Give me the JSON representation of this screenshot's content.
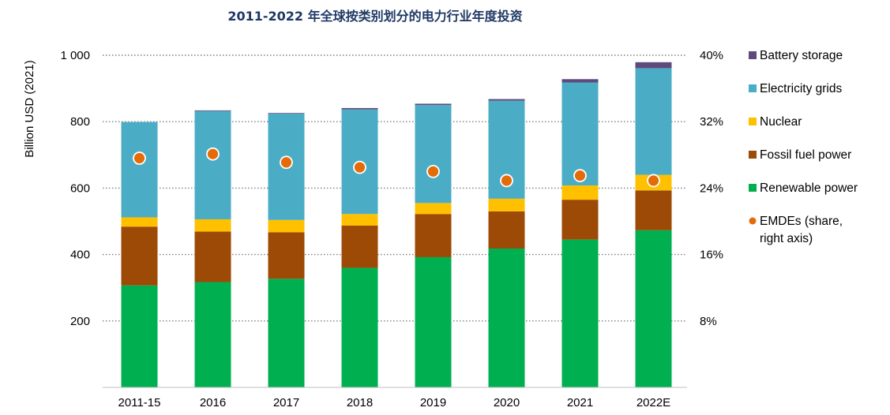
{
  "chart_data": {
    "type": "bar",
    "stacked": true,
    "title": "2011-2022 年全球按类别划分的电力行业年度投资",
    "ylabel": "Billion USD (2021)",
    "ylim": [
      0,
      1000
    ],
    "y_ticks": [
      "200",
      "400",
      "600",
      "800",
      "1 000"
    ],
    "y_tick_values": [
      200,
      400,
      600,
      800,
      1000
    ],
    "y2lim": [
      0,
      40
    ],
    "y2_ticks": [
      "8%",
      "16%",
      "24%",
      "32%",
      "40%"
    ],
    "y2_tick_values": [
      8,
      16,
      24,
      32,
      40
    ],
    "grid": "dotted horizontal",
    "legend_position": "right",
    "categories": [
      "2011-15",
      "2016",
      "2017",
      "2018",
      "2019",
      "2020",
      "2021",
      "2022E"
    ],
    "series": [
      {
        "name": "Renewable power",
        "color": "#00b050",
        "values": [
          307,
          317,
          327,
          360,
          392,
          418,
          445,
          473
        ]
      },
      {
        "name": "Fossil fuel power",
        "color": "#9c4a06",
        "values": [
          177,
          152,
          140,
          127,
          130,
          112,
          120,
          120
        ]
      },
      {
        "name": "Nuclear",
        "color": "#ffc000",
        "values": [
          28,
          37,
          37,
          35,
          33,
          38,
          43,
          47
        ]
      },
      {
        "name": "Electricity grids",
        "color": "#4bacc6",
        "values": [
          287,
          326,
          320,
          315,
          295,
          295,
          310,
          321
        ]
      },
      {
        "name": "Battery storage",
        "color": "#604a7b",
        "values": [
          0,
          2,
          2,
          4,
          4,
          5,
          10,
          18
        ]
      }
    ],
    "line_series": {
      "name": "EMDEs (share, right axis)",
      "color": "#e36c09",
      "axis": "right",
      "values": [
        27.6,
        28.1,
        27.1,
        26.5,
        26.0,
        24.9,
        25.5,
        24.9
      ]
    },
    "legend": [
      {
        "label": "Battery storage",
        "color": "#604a7b",
        "marker": "square"
      },
      {
        "label": "Electricity grids",
        "color": "#4bacc6",
        "marker": "square"
      },
      {
        "label": "Nuclear",
        "color": "#ffc000",
        "marker": "square"
      },
      {
        "label": "Fossil fuel power",
        "color": "#9c4a06",
        "marker": "square"
      },
      {
        "label": "Renewable power",
        "color": "#00b050",
        "marker": "square"
      },
      {
        "label": "EMDEs (share,",
        "label_line2": "right axis)",
        "color": "#e36c09",
        "marker": "circle"
      }
    ]
  }
}
